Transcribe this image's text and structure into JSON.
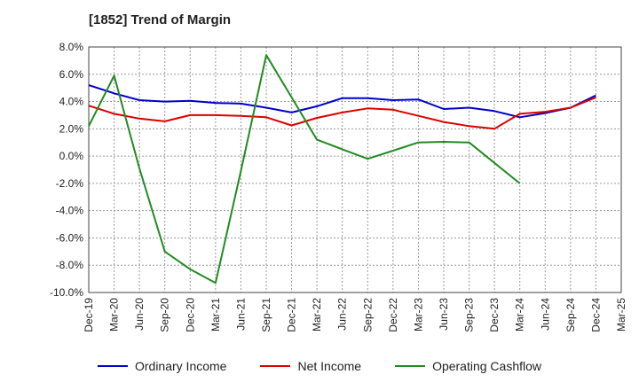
{
  "title": "[1852]  Trend of Margin",
  "chart_data": {
    "type": "line",
    "title": "[1852]  Trend of Margin",
    "xlabel": "",
    "ylabel": "",
    "categories": [
      "Dec-19",
      "Mar-20",
      "Jun-20",
      "Sep-20",
      "Dec-20",
      "Mar-21",
      "Jun-21",
      "Sep-21",
      "Dec-21",
      "Mar-22",
      "Jun-22",
      "Sep-22",
      "Dec-22",
      "Mar-23",
      "Jun-23",
      "Sep-23",
      "Dec-23",
      "Mar-24",
      "Jun-24",
      "Sep-24",
      "Dec-24",
      "Mar-25"
    ],
    "ylim": [
      -10.0,
      8.0
    ],
    "yticks": [
      "8.0%",
      "6.0%",
      "4.0%",
      "2.0%",
      "0.0%",
      "-2.0%",
      "-4.0%",
      "-6.0%",
      "-8.0%",
      "-10.0%"
    ],
    "ytick_values": [
      8,
      6,
      4,
      2,
      0,
      -2,
      -4,
      -6,
      -8,
      -10
    ],
    "grid": true,
    "legend_position": "bottom",
    "series": [
      {
        "name": "Ordinary Income",
        "color": "#0000cc",
        "values": [
          5.2,
          4.6,
          4.1,
          4.0,
          4.05,
          3.9,
          3.85,
          3.55,
          3.2,
          3.65,
          4.25,
          4.25,
          4.1,
          4.15,
          3.45,
          3.55,
          3.3,
          2.85,
          3.15,
          3.55,
          4.45,
          null
        ]
      },
      {
        "name": "Net Income",
        "color": "#dd0000",
        "values": [
          3.7,
          3.1,
          2.75,
          2.55,
          3.0,
          3.0,
          2.95,
          2.85,
          2.25,
          2.8,
          3.2,
          3.5,
          3.4,
          2.95,
          2.5,
          2.2,
          2.0,
          3.1,
          3.25,
          3.55,
          4.3,
          null
        ]
      },
      {
        "name": "Operating Cashflow",
        "color": "#228b22",
        "values": [
          2.2,
          5.9,
          -0.9,
          -7.0,
          -8.3,
          -9.3,
          -1.1,
          7.4,
          4.3,
          1.2,
          0.5,
          -0.2,
          0.4,
          1.0,
          1.05,
          1.0,
          -0.5,
          -2.0,
          null,
          null,
          null,
          null
        ]
      }
    ]
  }
}
